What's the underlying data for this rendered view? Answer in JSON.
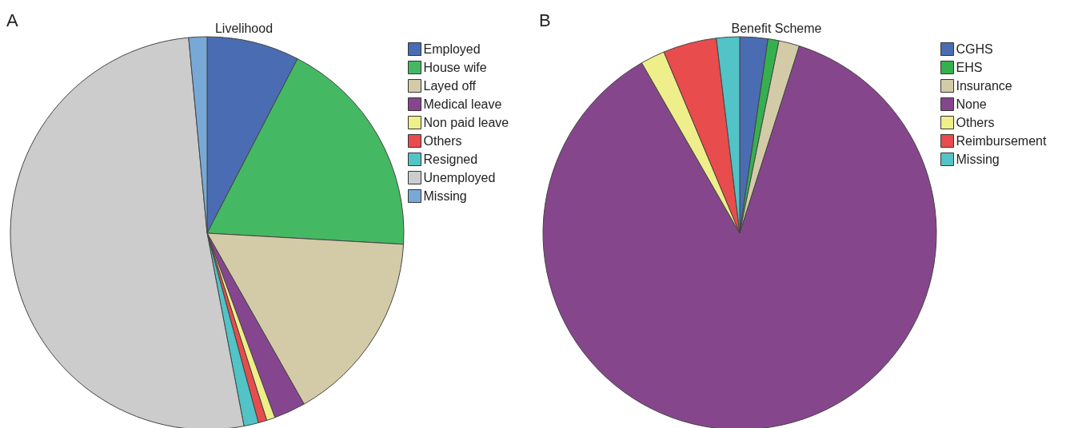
{
  "chart_data": [
    {
      "type": "pie",
      "title": "Livelihood",
      "annotations": [
        "A"
      ],
      "legend": "top right",
      "categories": [
        "Employed",
        "House wife",
        "Layed off",
        "Medical leave",
        "Non paid leave",
        "Others",
        "Resigned",
        "Unemployed",
        "Missing"
      ],
      "values": [
        7.6,
        18.3,
        15.9,
        2.6,
        0.7,
        0.7,
        1.2,
        51.5,
        1.5
      ],
      "colors": [
        "#4a6cb3",
        "#45b864",
        "#d3cba8",
        "#86468f",
        "#eeee8a",
        "#e84c4c",
        "#52c3c6",
        "#cccccc",
        "#78a9d6"
      ]
    },
    {
      "type": "pie",
      "title": "Benefit Scheme",
      "annotations": [
        "B"
      ],
      "legend": "top right",
      "categories": [
        "CGHS",
        "EHS",
        "Insurance",
        "None",
        "Others",
        "Reimbursement",
        "Missing"
      ],
      "values": [
        2.3,
        0.9,
        1.7,
        86.8,
        2.0,
        4.4,
        1.9
      ],
      "colors": [
        "#4a6cb3",
        "#35b04e",
        "#d3cba8",
        "#86468c",
        "#eeee8a",
        "#e84c4c",
        "#52c3c6"
      ]
    }
  ]
}
